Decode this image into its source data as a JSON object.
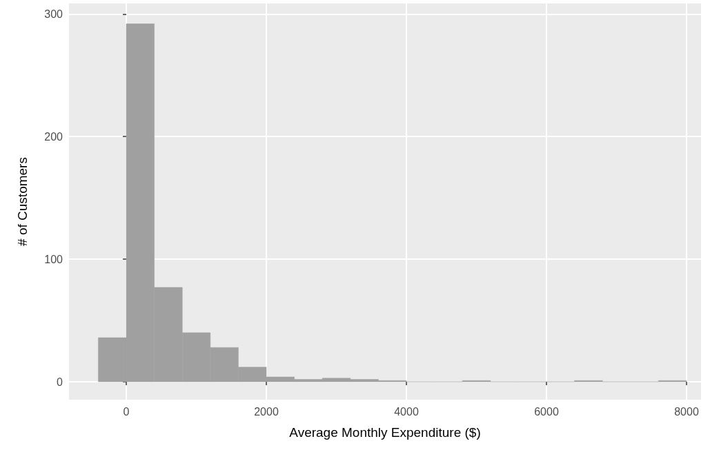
{
  "chart_data": {
    "type": "histogram",
    "xlabel": "Average Monthly Expenditure ($)",
    "ylabel": "# of Customers",
    "bins": [
      -400,
      0,
      400,
      800,
      1200,
      1600,
      2000,
      2400,
      2800,
      3200,
      3600,
      4000,
      4400,
      4800,
      5200,
      5600,
      6000,
      6400,
      6800,
      7200,
      7600,
      8000
    ],
    "values": [
      36,
      292,
      77,
      40,
      28,
      12,
      4,
      2,
      3,
      2,
      1,
      0,
      0,
      1,
      0,
      0,
      0,
      1,
      0,
      0,
      1
    ],
    "color": "#a0a0a0",
    "xlim": [
      -818,
      8207
    ],
    "xticks": [
      0,
      2000,
      4000,
      6000,
      8000
    ],
    "ylim": [
      -14.6,
      308.6
    ],
    "yticks": [
      0,
      100,
      200,
      300
    ],
    "grid": true
  }
}
